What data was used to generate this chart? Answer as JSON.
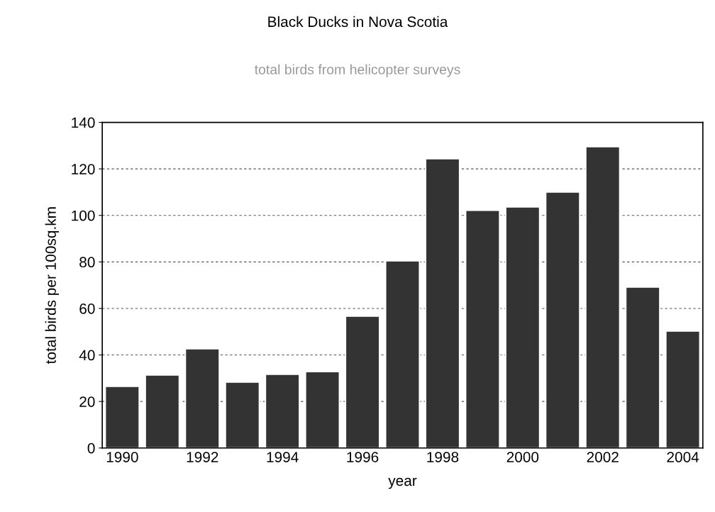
{
  "chart_data": {
    "type": "bar",
    "title": "Black Ducks in Nova Scotia",
    "subtitle": "total birds from helicopter surveys",
    "xlabel": "year",
    "ylabel": "total birds per 100sq.km",
    "categories": [
      "1990",
      null,
      "1992",
      null,
      "1994",
      null,
      "1996",
      null,
      "1998",
      null,
      "2000",
      null,
      "2002",
      null,
      "2004"
    ],
    "values": [
      26.5,
      31.4,
      42.7,
      28.4,
      31.7,
      32.9,
      56.7,
      80.5,
      124.4,
      102.2,
      103.7,
      110.1,
      129.6,
      69.2,
      50.3
    ],
    "color": "#333333",
    "ylim": [
      0,
      140
    ],
    "yticks": [
      0,
      20,
      40,
      60,
      80,
      100,
      120,
      140
    ],
    "grid": "y"
  }
}
